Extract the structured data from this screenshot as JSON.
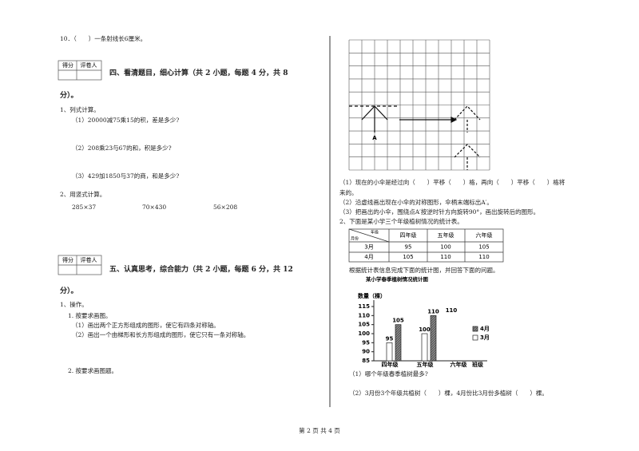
{
  "left": {
    "q10": "10．（　　）一条射线长6厘米。",
    "score_box_1": {
      "score": "得分",
      "reviewer": "评卷人"
    },
    "section4": {
      "title": "四、看清题目，细心计算（共 2 小题，每题 4 分，共 8",
      "title_end": "分）。",
      "q1": "1、列式计算。",
      "q1_items": [
        "（1）20000减75乘15的积，差是多少?",
        "（2）208乘23与67的和，积是多少?",
        "（3）429加1850与37的商，和是多少?"
      ],
      "q2": "2、用竖式计算。",
      "q2_items": [
        "285×37",
        "70×430",
        "56×208"
      ]
    },
    "score_box_2": {
      "score": "得分",
      "reviewer": "评卷人"
    },
    "section5": {
      "title": "五、认真思考，综合能力（共 2 小题，每题 6 分，共 12",
      "title_end": "分）。",
      "q1": "1、操作。",
      "q1_sub": "1. 按要求画图。",
      "q1_items": [
        "（1）画出两个正方形组成的图形，使它有四条对称轴。",
        "（2）画出一个由梯形和长方形组成的图形，使它只有一条对称轴。"
      ],
      "q2_sub": "2. 按要求画图题。"
    }
  },
  "right": {
    "grid_label": "A",
    "grid_questions": [
      "（1）现在的小伞是经过向（　　）平移（　　）格，再向（　　）平移（　　）格将",
      "来的。",
      "（2）沿虚线画出现在小伞的对称图形，伞柄末端标出A′。",
      "（3）把画出的小伞，围绕点A′按逆时针方向旋转90°，画出旋转后的图形。"
    ],
    "q2": "2、下面是某小学三个年级植树情况的统计表。",
    "table": {
      "corner_top": "年级",
      "corner_bottom": "月份",
      "header": [
        "四年级",
        "五年级",
        "六年级"
      ],
      "rows": [
        [
          "3月",
          "95",
          "100",
          "105"
        ],
        [
          "4月",
          "105",
          "110",
          "110"
        ]
      ]
    },
    "table_note": "根据统计表信息完成下面的统计图，并回答下面的问题。",
    "chart": {
      "title": "某小学春季植树情况统计图",
      "y_label": "数量（棵）",
      "ylim": [
        85,
        115
      ],
      "yticks": [
        85,
        90,
        95,
        100,
        105,
        110,
        115
      ],
      "categories": [
        "四年级",
        "五年级",
        "六年级",
        "班级"
      ],
      "series": [
        {
          "name": "4月",
          "values": [
            105,
            110,
            null,
            null
          ]
        },
        {
          "name": "3月",
          "values": [
            95,
            100,
            null,
            null
          ]
        }
      ],
      "annotation": "110"
    },
    "chart_questions": [
      "（1）哪个年级春季植树最多?",
      "（2）3月份3个年级共植树（　　）棵，4月份比3月份多植树（　　）棵。"
    ]
  },
  "footer": "第 2 页 共 4 页"
}
